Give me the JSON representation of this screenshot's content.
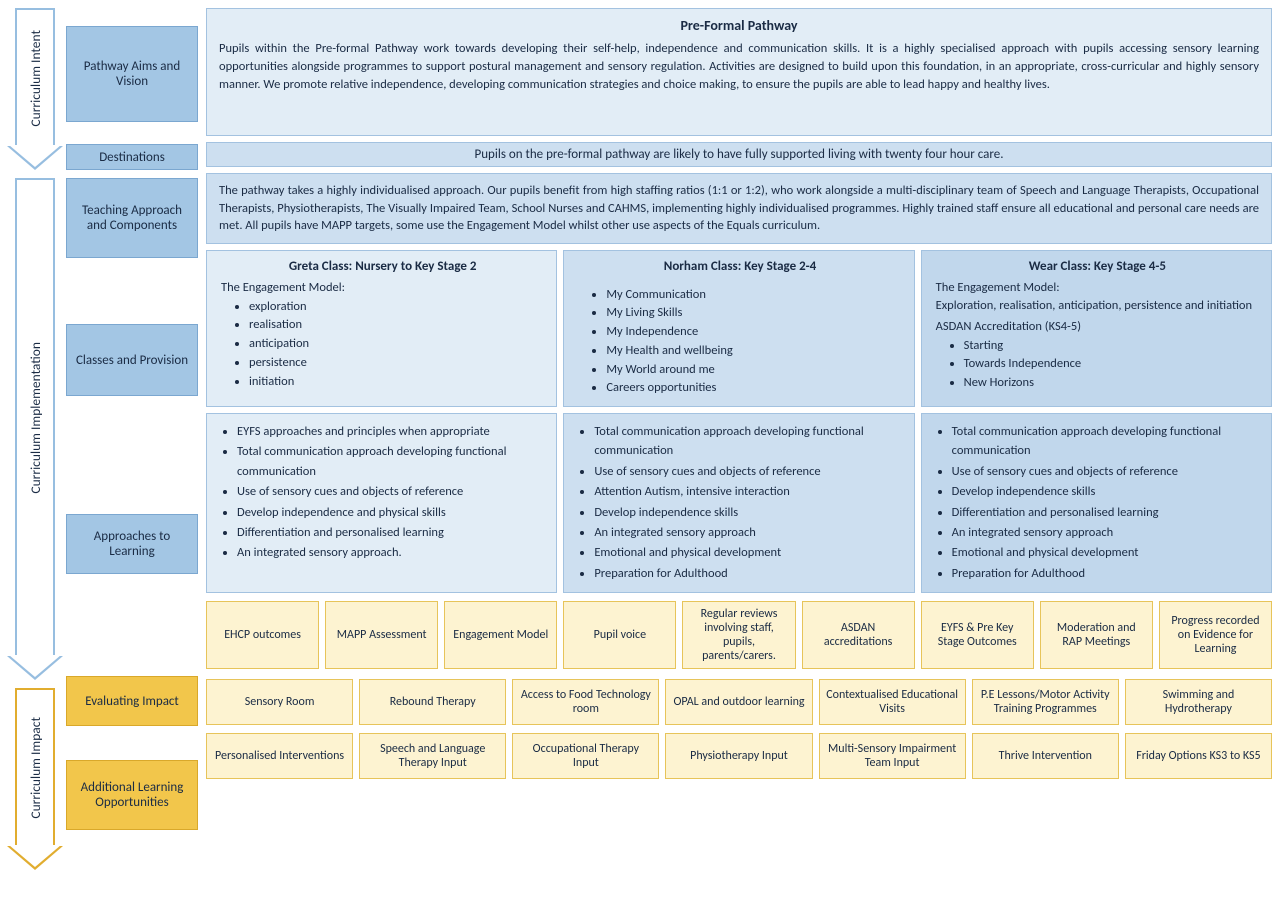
{
  "colors": {
    "blue_arrow_border": "#97bee0",
    "gold_arrow_border": "#e1ad2f",
    "blue_label_bg": "#a3c6e4",
    "blue_label_border": "#7ba7d0",
    "gold_label_bg": "#f2c64b",
    "gold_label_border": "#d9a82a",
    "blue_panel_bg_1": "#e2edf6",
    "blue_panel_bg_2": "#cddff0",
    "blue_panel_bg_3": "#c1d7ec",
    "yellow_chip_bg": "#fdf3d1",
    "yellow_chip_border": "#e7c45a",
    "text": "#1a2b44"
  },
  "arrows": {
    "intent": "Curriculum Intent",
    "implementation": "Curriculum Implementation",
    "impact": "Curriculum Impact"
  },
  "labels": {
    "aims": "Pathway Aims and Vision",
    "destinations": "Destinations",
    "teaching": "Teaching Approach and Components",
    "classes": "Classes and Provision",
    "approaches": "Approaches to Learning",
    "evaluating": "Evaluating Impact",
    "additional": "Additional Learning Opportunities"
  },
  "aims": {
    "title": "Pre-Formal Pathway",
    "body": "Pupils within the Pre-formal Pathway work towards developing their self-help, independence and communication skills. It is a highly specialised approach with pupils accessing sensory learning opportunities alongside programmes to support postural management and sensory regulation. Activities are designed to build upon this foundation, in an appropriate, cross-curricular and highly sensory manner. We promote relative independence, developing communication strategies and choice making, to ensure the pupils are able to lead happy and healthy lives."
  },
  "destinations_text": "Pupils on the pre-formal pathway are likely to have fully supported living with twenty four hour care.",
  "teaching_body": "The pathway takes a highly individualised approach. Our pupils benefit from high staffing ratios (1:1 or 1:2), who work alongside a multi-disciplinary team of Speech and Language Therapists, Occupational Therapists, Physiotherapists, The Visually Impaired Team, School Nurses and CAHMS, implementing highly individualised programmes. Highly trained staff ensure all educational and personal care needs are met. All pupils have MAPP targets, some use the  Engagement Model whilst other use aspects of the Equals curriculum.",
  "classes": {
    "c1": {
      "title": "Greta Class: Nursery to Key Stage 2",
      "subtitle": "The Engagement Model:",
      "items": [
        "exploration",
        "realisation",
        "anticipation",
        "persistence",
        "initiation"
      ]
    },
    "c2": {
      "title": "Norham Class: Key Stage 2-4",
      "items": [
        "My Communication",
        "My Living Skills",
        "My Independence",
        "My Health and wellbeing",
        "My World around me",
        "Careers opportunities"
      ]
    },
    "c3": {
      "title": "Wear Class: Key Stage 4-5",
      "sub1": "The Engagement Model:",
      "sub1body": "Exploration, realisation, anticipation, persistence and initiation",
      "sub2": "ASDAN Accreditation (KS4-5)",
      "items": [
        "Starting",
        "Towards Independence",
        "New Horizons"
      ]
    }
  },
  "approaches": {
    "a1": [
      "EYFS approaches and principles when appropriate",
      "Total communication approach developing functional communication",
      "Use of sensory cues and objects of reference",
      "Develop independence  and physical skills",
      "Differentiation and personalised learning",
      "An integrated sensory approach."
    ],
    "a2": [
      "Total communication approach developing functional communication",
      "Use of sensory cues and objects of reference",
      "Attention Autism, intensive interaction",
      "Develop independence skills",
      "An integrated sensory approach",
      "Emotional and physical development",
      "Preparation for Adulthood"
    ],
    "a3": [
      "Total communication approach developing functional communication",
      "Use of sensory cues and objects of reference",
      "Develop independence skills",
      "Differentiation and personalised learning",
      "An integrated sensory approach",
      "Emotional and physical development",
      "Preparation for Adulthood"
    ]
  },
  "evaluating_chips": [
    "EHCP outcomes",
    "MAPP Assessment",
    "Engagement Model",
    "Pupil voice",
    "Regular reviews involving staff, pupils, parents/carers.",
    "ASDAN accreditations",
    "EYFS & Pre Key Stage Outcomes",
    "Moderation and RAP Meetings",
    "Progress recorded on Evidence for Learning"
  ],
  "additional_row1": [
    "Sensory Room",
    "Rebound Therapy",
    "Access to Food Technology room",
    "OPAL and outdoor learning",
    "Contextualised Educational Visits",
    "P.E Lessons/Motor Activity Training Programmes",
    "Swimming  and Hydrotherapy"
  ],
  "additional_row2": [
    "Personalised Interventions",
    "Speech and Language Therapy Input",
    "Occupational Therapy Input",
    "Physiotherapy Input",
    "Multi-Sensory Impairment Team Input",
    "Thrive Intervention",
    "Friday Options KS3 to KS5"
  ]
}
